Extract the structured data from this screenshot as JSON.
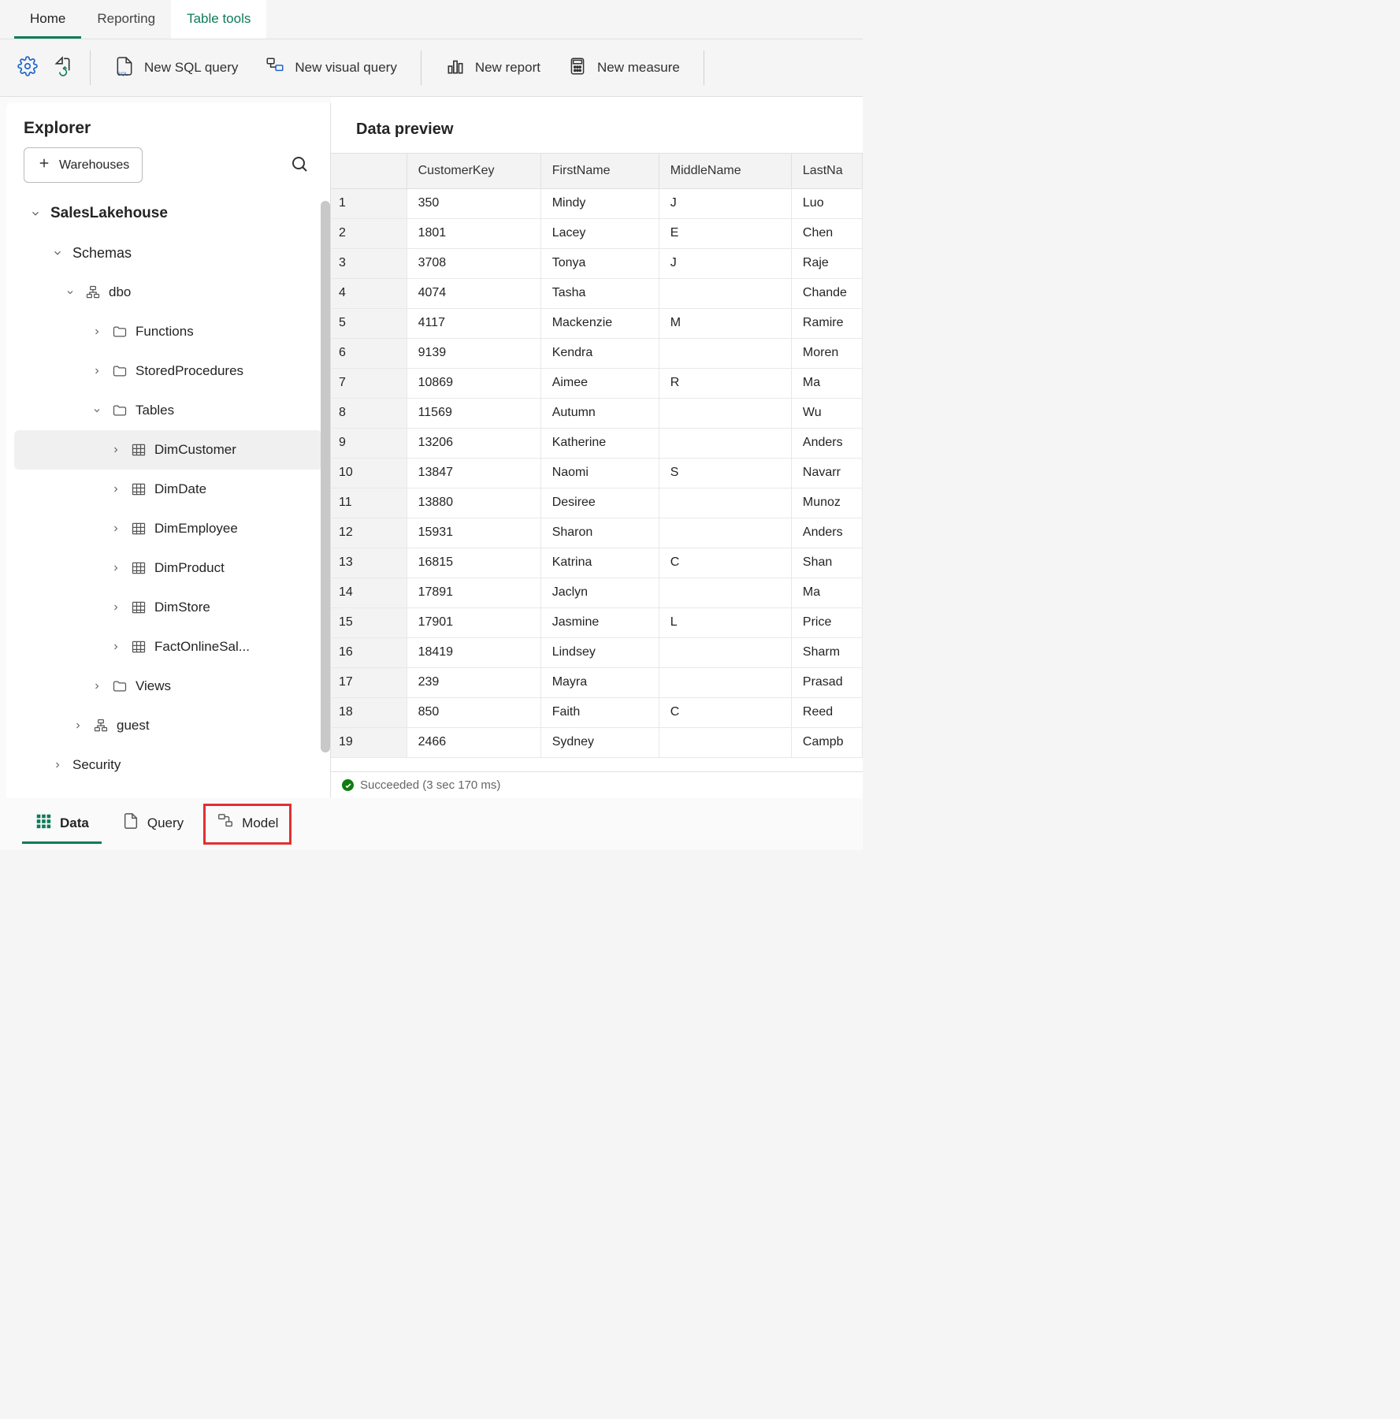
{
  "colors": {
    "accent": "#0f7b5a",
    "highlight_border": "#e03030",
    "success": "#107c10",
    "row_alt_bg": "#f3f3f3",
    "border": "#e0e0e0"
  },
  "top_tabs": {
    "home": "Home",
    "reporting": "Reporting",
    "table_tools": "Table tools"
  },
  "toolbar": {
    "new_sql": "New SQL query",
    "new_visual": "New visual query",
    "new_report": "New report",
    "new_measure": "New measure"
  },
  "explorer": {
    "title": "Explorer",
    "warehouses_btn": "Warehouses",
    "tree": {
      "root": "SalesLakehouse",
      "schemas_label": "Schemas",
      "dbo": "dbo",
      "functions": "Functions",
      "stored_procedures": "StoredProcedures",
      "tables": "Tables",
      "table_items": [
        "DimCustomer",
        "DimDate",
        "DimEmployee",
        "DimProduct",
        "DimStore",
        "FactOnlineSal..."
      ],
      "views": "Views",
      "guest": "guest",
      "security": "Security"
    }
  },
  "preview": {
    "title": "Data preview",
    "columns": [
      "CustomerKey",
      "FirstName",
      "MiddleName",
      "LastNa"
    ],
    "rows": [
      [
        "1",
        "350",
        "Mindy",
        "J",
        "Luo"
      ],
      [
        "2",
        "1801",
        "Lacey",
        "E",
        "Chen"
      ],
      [
        "3",
        "3708",
        "Tonya",
        "J",
        "Raje"
      ],
      [
        "4",
        "4074",
        "Tasha",
        "",
        "Chande"
      ],
      [
        "5",
        "4117",
        "Mackenzie",
        "M",
        "Ramire"
      ],
      [
        "6",
        "9139",
        "Kendra",
        "",
        "Moren"
      ],
      [
        "7",
        "10869",
        "Aimee",
        "R",
        "Ma"
      ],
      [
        "8",
        "11569",
        "Autumn",
        "",
        "Wu"
      ],
      [
        "9",
        "13206",
        "Katherine",
        "",
        "Anders"
      ],
      [
        "10",
        "13847",
        "Naomi",
        "S",
        "Navarr"
      ],
      [
        "11",
        "13880",
        "Desiree",
        "",
        "Munoz"
      ],
      [
        "12",
        "15931",
        "Sharon",
        "",
        "Anders"
      ],
      [
        "13",
        "16815",
        "Katrina",
        "C",
        "Shan"
      ],
      [
        "14",
        "17891",
        "Jaclyn",
        "",
        "Ma"
      ],
      [
        "15",
        "17901",
        "Jasmine",
        "L",
        "Price"
      ],
      [
        "16",
        "18419",
        "Lindsey",
        "",
        "Sharm"
      ],
      [
        "17",
        "239",
        "Mayra",
        "",
        "Prasad"
      ],
      [
        "18",
        "850",
        "Faith",
        "C",
        "Reed"
      ],
      [
        "19",
        "2466",
        "Sydney",
        "",
        "Campb"
      ]
    ],
    "status": "Succeeded (3 sec 170 ms)"
  },
  "bottom_tabs": {
    "data": "Data",
    "query": "Query",
    "model": "Model"
  }
}
